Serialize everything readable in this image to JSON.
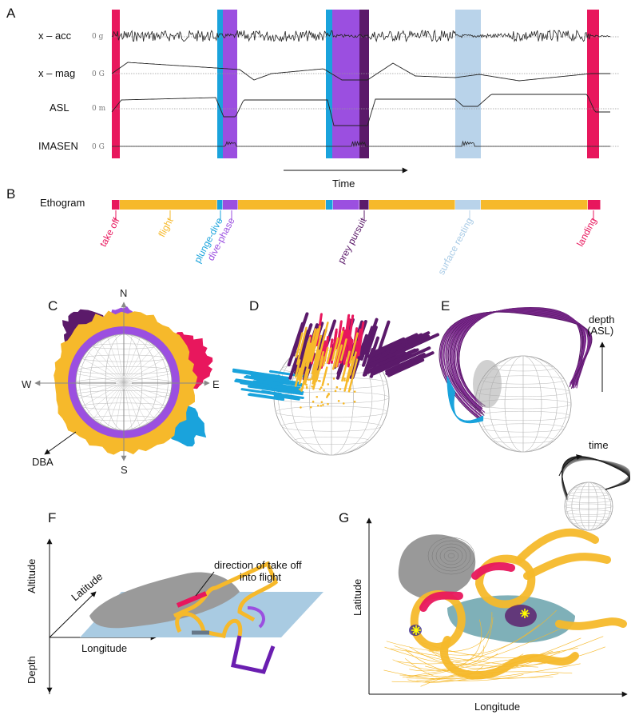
{
  "panel_labels": [
    "A",
    "B",
    "C",
    "D",
    "E",
    "F",
    "G"
  ],
  "signals": {
    "rows": [
      {
        "label": "x – acc",
        "zero": "0 g"
      },
      {
        "label": "x – mag",
        "zero": "0 G"
      },
      {
        "label": "ASL",
        "zero": "0 m"
      },
      {
        "label": "IMASEN",
        "zero": "0 G"
      }
    ],
    "time_label": "Time"
  },
  "ethogram": {
    "title": "Ethogram",
    "states": [
      "take off",
      "flight",
      "plunge-dive",
      "dive-phase",
      "prey pursuit",
      "surface resting",
      "landing"
    ]
  },
  "panel_c": {
    "north": "N",
    "east": "E",
    "south": "S",
    "west": "W",
    "dba": "DBA"
  },
  "panel_e": {
    "depth_lines": [
      "depth",
      "(ASL)"
    ],
    "time": "time"
  },
  "panel_f": {
    "altitude": "Altitude",
    "latitude": "Latitude",
    "longitude": "Longitude",
    "depth": "Depth",
    "annotation_lines": [
      "direction of take off",
      "into flight"
    ]
  },
  "panel_g": {
    "latitude": "Latitude",
    "longitude": "Longitude"
  }
}
